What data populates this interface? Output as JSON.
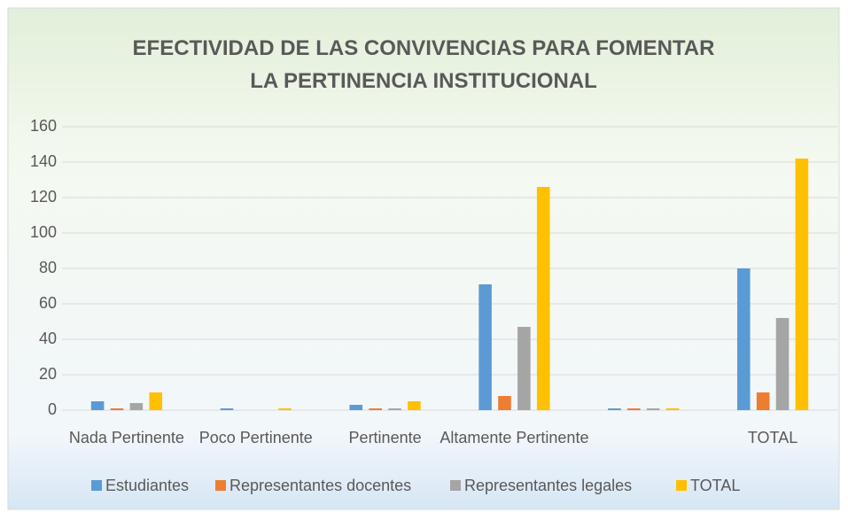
{
  "chart_data": {
    "type": "bar",
    "title": "EFECTIVIDAD DE LAS CONVIVENCIAS PARA FOMENTAR LA PERTINENCIA INSTITUCIONAL",
    "categories": [
      "Nada Pertinente",
      "Poco Pertinente",
      "Pertinente",
      "Altamente Pertinente",
      null,
      "TOTAL"
    ],
    "series": [
      {
        "name": "Estudiantes",
        "color": "#5b9bd5",
        "values": [
          5,
          1,
          3,
          71,
          1,
          80
        ]
      },
      {
        "name": "Representantes docentes",
        "color": "#ed7d31",
        "values": [
          1,
          0,
          1,
          8,
          1,
          10
        ]
      },
      {
        "name": "Representantes legales",
        "color": "#a5a5a5",
        "values": [
          4,
          0,
          1,
          47,
          1,
          52
        ]
      },
      {
        "name": "TOTAL",
        "color": "#ffc000",
        "values": [
          10,
          1,
          5,
          126,
          1,
          142
        ]
      }
    ],
    "ylim": [
      0,
      160
    ],
    "yticks": [
      0,
      20,
      40,
      60,
      80,
      100,
      120,
      140,
      160
    ],
    "grid": true,
    "legend": "bottom"
  }
}
